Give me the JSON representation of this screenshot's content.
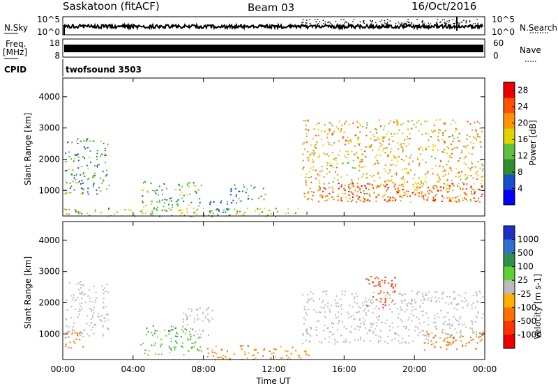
{
  "header": {
    "station": "Saskatoon (fitACF)",
    "beam": "Beam 03",
    "date": "16/Oct/2016"
  },
  "panels": {
    "nsky_label": "N.Sky",
    "nsky_left_ticks": [
      "10^5",
      "10^0"
    ],
    "nsky_right_ticks": [
      "10^5",
      "10^0"
    ],
    "nsearch_label": "N.Search",
    "freq_label_1": "Freq.",
    "freq_label_2": "[MHz]",
    "freq_ticks": [
      "18",
      "8"
    ],
    "nave_ticks": [
      "60",
      "0"
    ],
    "nave_label": "Nave",
    "cpid_label": "CPID",
    "cpid_value": "twofsound 3503"
  },
  "colors": {
    "power": [
      "#0000ff",
      "#1a4fcc",
      "#2f8f2f",
      "#5fbf3f",
      "#dfd400",
      "#ff9400",
      "#ff5000",
      "#ee0000"
    ],
    "velocity": [
      "#1a30c8",
      "#2f6fcf",
      "#2f8f4f",
      "#5fd02f",
      "#bbbbbb",
      "#ffb000",
      "#ff7000",
      "#ff3300",
      "#ee0000"
    ],
    "ground_scatter": "#bbbbbb"
  },
  "chart_data": [
    {
      "type": "heatmap",
      "title": "",
      "xlabel": "",
      "ylabel": "Slant Range [km]",
      "xlim": [
        0,
        24
      ],
      "ylim": [
        180,
        4600
      ],
      "yticks": [
        "1000",
        "2000",
        "3000",
        "4000"
      ],
      "colorbar_label": "Power [dB]",
      "colorbar_ticks": [
        "4",
        "8",
        "12",
        "16",
        "20",
        "24",
        "28"
      ],
      "colorbar_range": [
        0,
        30
      ],
      "scatter_regions": [
        {
          "t0": 0.1,
          "t1": 2.6,
          "r0": 900,
          "r1": 2700,
          "level": 10
        },
        {
          "t0": 4.4,
          "t1": 7.9,
          "r0": 350,
          "r1": 1300,
          "level": 12
        },
        {
          "t0": 8.3,
          "t1": 9.4,
          "r0": 300,
          "r1": 700,
          "level": 9
        },
        {
          "t0": 9.5,
          "t1": 11.5,
          "r0": 600,
          "r1": 1200,
          "level": 8
        },
        {
          "t0": 13.6,
          "t1": 23.9,
          "r0": 650,
          "r1": 3300,
          "level": 19
        },
        {
          "t0": 14.5,
          "t1": 23.9,
          "r0": 650,
          "r1": 1250,
          "level": 26
        },
        {
          "t0": 0.0,
          "t1": 14.0,
          "r0": 180,
          "r1": 450,
          "level": 14
        }
      ]
    },
    {
      "type": "heatmap",
      "title": "",
      "xlabel": "Time UT",
      "ylabel": "Slant Range [km]",
      "xlim": [
        0,
        24
      ],
      "ylim": [
        180,
        4600
      ],
      "xticks": [
        "00:00",
        "04:00",
        "08:00",
        "12:00",
        "16:00",
        "20:00",
        "00:00"
      ],
      "yticks": [
        "1000",
        "2000",
        "3000",
        "4000"
      ],
      "colorbar_label": "Velocity [m s-1]",
      "colorbar_ticks": [
        "1000",
        "500",
        "100",
        "25",
        "-25",
        "-100",
        "-500",
        "-1000"
      ],
      "scatter_regions": [
        {
          "t0": 0.1,
          "t1": 2.6,
          "r0": 900,
          "r1": 2700,
          "velocity": 0,
          "ground": true
        },
        {
          "t0": 0.1,
          "t1": 1.2,
          "r0": 550,
          "r1": 1100,
          "velocity": -300
        },
        {
          "t0": 4.4,
          "t1": 7.9,
          "r0": 350,
          "r1": 1300,
          "velocity": 80
        },
        {
          "t0": 6.8,
          "t1": 8.5,
          "r0": 900,
          "r1": 1900,
          "velocity": 0,
          "ground": true
        },
        {
          "t0": 8.2,
          "t1": 14.0,
          "r0": 180,
          "r1": 650,
          "velocity": -120
        },
        {
          "t0": 13.6,
          "t1": 23.9,
          "r0": 700,
          "r1": 2400,
          "velocity": 0,
          "ground": true
        },
        {
          "t0": 17.2,
          "t1": 18.9,
          "r0": 1800,
          "r1": 2900,
          "velocity": -700
        },
        {
          "t0": 20.5,
          "t1": 23.9,
          "r0": 500,
          "r1": 1100,
          "velocity": -250
        }
      ]
    }
  ]
}
